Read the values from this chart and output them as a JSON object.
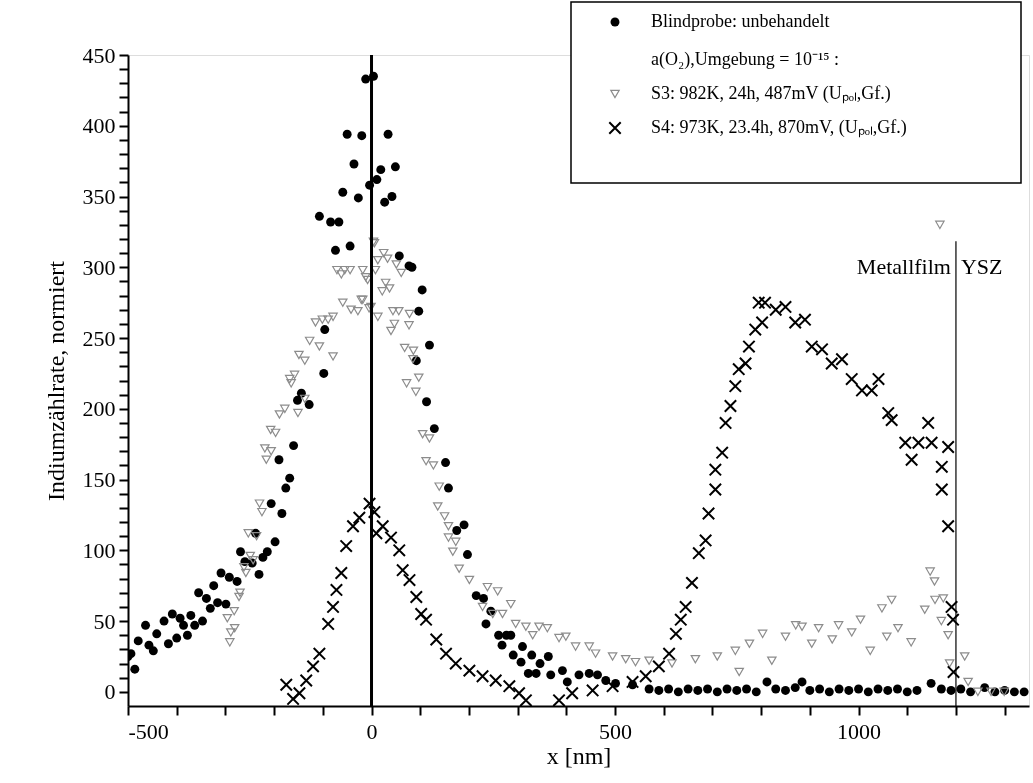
{
  "chart_data": {
    "type": "scatter",
    "xlabel": "x [nm]",
    "ylabel": "Indiumzählrate, normiert",
    "legend_title": "a(O₂),Umgebung = 10⁻¹⁵ :",
    "xlim": [
      -500,
      1350
    ],
    "ylim": [
      -10,
      450
    ],
    "xticks": [
      -500,
      {
        "value": -400,
        "label": null
      },
      {
        "value": -300,
        "label": null
      },
      {
        "value": -200,
        "label": null
      },
      {
        "value": -100,
        "label": null
      },
      0,
      {
        "value": 100,
        "label": null
      },
      {
        "value": 200,
        "label": null
      },
      {
        "value": 300,
        "label": null
      },
      {
        "value": 400,
        "label": null
      },
      500,
      {
        "value": 600,
        "label": null
      },
      {
        "value": 700,
        "label": null
      },
      {
        "value": 800,
        "label": null
      },
      {
        "value": 900,
        "label": null
      },
      1000,
      {
        "value": 1100,
        "label": null
      },
      {
        "value": 1200,
        "label": null
      },
      {
        "value": 1300,
        "label": null
      }
    ],
    "yticks": [
      0,
      {
        "value": 10,
        "label": null
      },
      {
        "value": 20,
        "label": null
      },
      {
        "value": 30,
        "label": null
      },
      {
        "value": 40,
        "label": null
      },
      50,
      {
        "value": 60,
        "label": null
      },
      {
        "value": 70,
        "label": null
      },
      {
        "value": 80,
        "label": null
      },
      {
        "value": 90,
        "label": null
      },
      100,
      {
        "value": 110,
        "label": null
      },
      {
        "value": 120,
        "label": null
      },
      {
        "value": 130,
        "label": null
      },
      {
        "value": 140,
        "label": null
      },
      150,
      {
        "value": 160,
        "label": null
      },
      {
        "value": 170,
        "label": null
      },
      {
        "value": 180,
        "label": null
      },
      {
        "value": 190,
        "label": null
      },
      200,
      {
        "value": 210,
        "label": null
      },
      {
        "value": 220,
        "label": null
      },
      {
        "value": 230,
        "label": null
      },
      {
        "value": 240,
        "label": null
      },
      250,
      {
        "value": 260,
        "label": null
      },
      {
        "value": 270,
        "label": null
      },
      {
        "value": 280,
        "label": null
      },
      {
        "value": 290,
        "label": null
      },
      300,
      {
        "value": 310,
        "label": null
      },
      {
        "value": 320,
        "label": null
      },
      {
        "value": 330,
        "label": null
      },
      {
        "value": 340,
        "label": null
      },
      350,
      {
        "value": 360,
        "label": null
      },
      {
        "value": 370,
        "label": null
      },
      {
        "value": 380,
        "label": null
      },
      {
        "value": 390,
        "label": null
      },
      400,
      {
        "value": 410,
        "label": null
      },
      {
        "value": 420,
        "label": null
      },
      {
        "value": 430,
        "label": null
      },
      {
        "value": 440,
        "label": null
      },
      450
    ],
    "grid": false,
    "legend": "top right",
    "ref_lines": [
      {
        "axis": "x",
        "value": 0,
        "color": "#000000"
      },
      {
        "axis": "x",
        "value": 1200,
        "color": "#000000"
      }
    ],
    "annotations": [
      {
        "text": "Metallfilm",
        "x": 1200,
        "y": 300
      },
      {
        "text": "YSZ",
        "x": 1200,
        "y": 300
      }
    ],
    "series": [
      {
        "name": "Blindprobe: unbehandelt",
        "color": "#000000",
        "marker": "circle",
        "x": [
          -500,
          -494,
          -486,
          -479,
          -464,
          -457,
          -448,
          -441,
          -426,
          -417,
          -409,
          -400,
          -393,
          -386,
          -378,
          -371,
          -363,
          -355,
          -347,
          -339,
          -331,
          -324,
          -316,
          -309,
          -299,
          -292,
          -276,
          -269,
          -260,
          -245,
          -238,
          -231,
          -223,
          -214,
          -206,
          -198,
          -190,
          -184,
          -176,
          -168,
          -160,
          -152,
          -144,
          -128,
          -107,
          -98,
          -96,
          -84,
          -74,
          -67,
          -59,
          -50,
          -44,
          -36,
          -27,
          -20,
          -12,
          -4,
          4,
          11,
          19,
          27,
          34,
          42,
          49,
          57,
          77,
          83,
          92,
          97,
          104,
          113,
          119,
          129,
          152,
          158,
          175,
          190,
          197,
          215,
          230,
          235,
          245,
          261,
          268,
          277,
          286,
          291,
          307,
          310,
          322,
          329,
          338,
          346,
          363,
          368,
          392,
          402,
          426,
          447,
          464,
          481,
          501,
          536,
          570,
          590,
          610,
          630,
          650,
          670,
          690,
          710,
          730,
          750,
          770,
          790,
          812,
          830,
          850,
          870,
          884,
          900,
          920,
          940,
          960,
          980,
          1000,
          1020,
          1040,
          1060,
          1080,
          1100,
          1120,
          1149,
          1170,
          1190,
          1210,
          1230,
          1259,
          1280,
          1300,
          1320,
          1340
        ],
        "values": [
          25,
          27,
          16,
          36,
          47,
          33,
          29,
          41,
          50,
          34,
          55,
          38,
          52,
          47,
          40,
          54,
          47,
          70,
          50,
          66,
          59,
          75,
          63,
          84,
          62,
          81,
          78,
          99,
          92,
          91,
          112,
          83,
          95,
          99,
          133,
          106,
          164,
          126,
          144,
          151,
          174,
          206,
          211,
          203,
          336,
          225,
          256,
          332,
          312,
          332,
          353,
          394,
          315,
          373,
          349,
          393,
          433,
          358,
          435,
          362,
          369,
          346,
          394,
          350,
          371,
          308,
          301,
          300,
          234,
          269,
          284,
          205,
          245,
          186,
          162,
          144,
          114,
          118,
          97,
          68,
          66,
          48,
          57,
          40,
          33,
          40,
          40,
          26,
          21,
          32,
          13,
          26,
          13,
          20,
          25,
          12,
          15,
          7,
          12,
          13,
          12,
          8,
          6,
          5,
          2,
          1,
          2,
          0,
          2,
          1,
          2,
          0,
          2,
          1,
          2,
          0,
          7,
          2,
          1,
          3,
          7,
          1,
          2,
          0,
          2,
          1,
          2,
          0,
          2,
          1,
          2,
          0,
          1,
          6,
          2,
          1,
          2,
          0,
          3,
          0,
          1,
          0,
          0
        ]
      },
      {
        "name": "S3: 982K, 24h, 487mV (Uₚₒₗ,Gf.)",
        "color": "#8c8c8c",
        "marker": "triangle",
        "x": [
          -296,
          -291,
          -289,
          -282,
          -281,
          -272,
          -270,
          -262,
          -258,
          -253,
          -249,
          -243,
          -236,
          -230,
          -225,
          -219,
          -216,
          -207,
          -206,
          -197,
          -189,
          -178,
          -168,
          -165,
          -158,
          -151,
          -149,
          -137,
          -137,
          -127,
          -115,
          -107,
          -101,
          -89,
          -79,
          -79,
          -71,
          -62,
          -59,
          -55,
          -44,
          -42,
          -28,
          -21,
          -18,
          -18,
          -12,
          -8,
          -5,
          -1,
          4,
          6,
          8,
          13,
          13,
          22,
          25,
          29,
          33,
          37,
          40,
          44,
          47,
          51,
          56,
          61,
          68,
          72,
          77,
          78,
          85,
          86,
          91,
          97,
          105,
          112,
          119,
          127,
          136,
          139,
          150,
          158,
          158,
          167,
          173,
          180,
          201,
          228,
          238,
          249,
          259,
          269,
          286,
          296,
          317,
          331,
          344,
          361,
          385,
          399,
          419,
          447,
          460,
          495,
          522,
          542,
          570,
          617,
          665,
          710,
          747,
          755,
          776,
          803,
          822,
          850,
          871,
          884,
          904,
          918,
          946,
          959,
          986,
          1004,
          1024,
          1048,
          1058,
          1068,
          1081,
          1108,
          1136,
          1147,
          1156,
          1157,
          1167,
          1170,
          1174,
          1184,
          1187,
          1218,
          1225,
          1245,
          1272,
          1299
        ],
        "values": [
          52,
          35,
          42,
          57,
          45,
          67,
          70,
          88,
          84,
          112,
          96,
          93,
          110,
          133,
          127,
          172,
          164,
          185,
          170,
          183,
          196,
          200,
          221,
          218,
          224,
          197,
          238,
          234,
          207,
          248,
          261,
          244,
          263,
          263,
          237,
          265,
          298,
          295,
          275,
          298,
          298,
          270,
          269,
          277,
          298,
          277,
          293,
          291,
          271,
          272,
          318,
          317,
          298,
          305,
          265,
          283,
          310,
          289,
          306,
          285,
          255,
          269,
          260,
          302,
          269,
          296,
          243,
          218,
          259,
          267,
          235,
          241,
          212,
          222,
          182,
          163,
          179,
          160,
          131,
          145,
          124,
          117,
          109,
          99,
          106,
          87,
          79,
          60,
          74,
          55,
          71,
          55,
          62,
          48,
          46,
          40,
          46,
          45,
          38,
          39,
          32,
          32,
          27,
          25,
          23,
          21,
          22,
          20,
          23,
          25,
          29,
          14,
          34,
          41,
          22,
          39,
          47,
          46,
          34,
          45,
          37,
          47,
          42,
          51,
          29,
          59,
          39,
          65,
          45,
          35,
          58,
          85,
          78,
          65,
          330,
          50,
          66,
          40,
          20,
          25,
          7,
          0,
          0,
          0
        ]
      },
      {
        "name": "S4: 973K, 23.4h, 870mV, (Uₚₒₗ,Gf.)",
        "color": "#000000",
        "marker": "cross",
        "x": [
          -175,
          -161,
          -148,
          -134,
          -120,
          -107,
          -89,
          -79,
          -72,
          -62,
          -52,
          -38,
          -25,
          -4,
          6,
          10,
          23,
          40,
          57,
          64,
          78,
          92,
          102,
          112,
          133,
          153,
          173,
          201,
          228,
          255,
          283,
          303,
          317,
          385,
          412,
          454,
          495,
          536,
          563,
          590,
          611,
          625,
          635,
          645,
          658,
          672,
          686,
          692,
          706,
          706,
          720,
          727,
          737,
          747,
          754,
          768,
          775,
          788,
          795,
          802,
          808,
          830,
          850,
          870,
          890,
          904,
          925,
          945,
          966,
          986,
          1007,
          1027,
          1041,
          1061,
          1068,
          1096,
          1109,
          1123,
          1143,
          1150,
          1171,
          1171,
          1184,
          1184,
          1191,
          1194,
          1195
        ],
        "values": [
          5,
          -5,
          -1,
          8,
          18,
          27,
          48,
          60,
          72,
          84,
          103,
          117,
          123,
          133,
          127,
          112,
          117,
          109,
          100,
          86,
          79,
          67,
          55,
          51,
          37,
          27,
          20,
          15,
          11,
          8,
          4,
          -1,
          -6,
          -6,
          -1,
          1,
          4,
          7,
          11,
          18,
          27,
          41,
          51,
          60,
          77,
          98,
          107,
          126,
          143,
          157,
          169,
          190,
          202,
          216,
          228,
          232,
          244,
          256,
          275,
          261,
          275,
          270,
          272,
          261,
          263,
          244,
          242,
          232,
          235,
          221,
          213,
          213,
          221,
          197,
          192,
          176,
          164,
          176,
          190,
          176,
          159,
          143,
          173,
          117,
          60,
          51,
          14
        ]
      }
    ]
  }
}
